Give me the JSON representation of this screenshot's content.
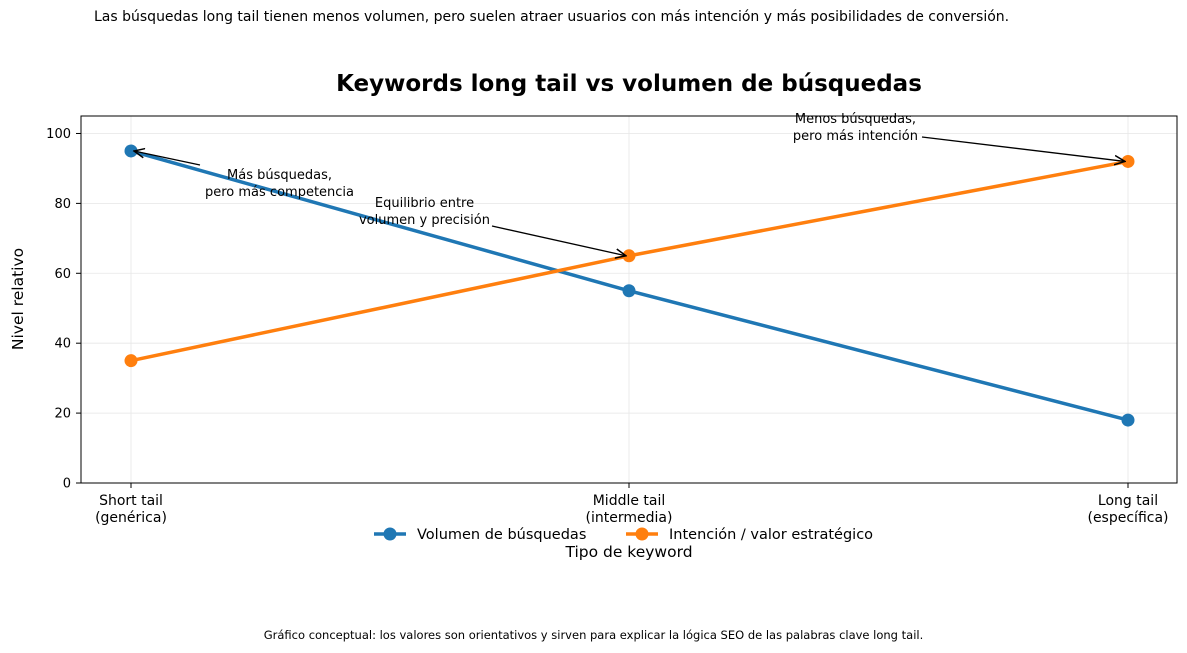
{
  "subtitle": "Las búsquedas long tail tienen menos volumen, pero suelen atraer usuarios con más intención y más posibilidades de conversión.",
  "footnote": "Gráfico conceptual: los valores son orientativos y sirven para explicar la lógica SEO de las palabras clave long tail.",
  "chart_data": {
    "type": "line",
    "title": "Keywords long tail vs volumen de búsquedas",
    "xlabel": "Tipo de keyword",
    "ylabel": "Nivel relativo",
    "categories": [
      [
        "Short tail",
        "(genérica)"
      ],
      [
        "Middle tail",
        "(intermedia)"
      ],
      [
        "Long tail",
        "(específica)"
      ]
    ],
    "ylim": [
      0,
      105
    ],
    "yticks": [
      0,
      20,
      40,
      60,
      80,
      100
    ],
    "grid": true,
    "legend_placement": "bottom-center",
    "series": [
      {
        "name": "Volumen de búsquedas",
        "values": [
          95,
          55,
          18
        ],
        "color": "#1f77b4"
      },
      {
        "name": "Intención / valor estratégico",
        "values": [
          35,
          65,
          92
        ],
        "color": "#ff7f0e"
      }
    ],
    "annotations": [
      {
        "lines": [
          "Más búsquedas,",
          "pero más competencia"
        ],
        "target_series": 0,
        "target_index": 0
      },
      {
        "lines": [
          "Equilibrio entre",
          "volumen y precisión"
        ],
        "target_series": 1,
        "target_index": 1
      },
      {
        "lines": [
          "Menos búsquedas,",
          "pero más intención"
        ],
        "target_series": 1,
        "target_index": 2
      }
    ]
  }
}
